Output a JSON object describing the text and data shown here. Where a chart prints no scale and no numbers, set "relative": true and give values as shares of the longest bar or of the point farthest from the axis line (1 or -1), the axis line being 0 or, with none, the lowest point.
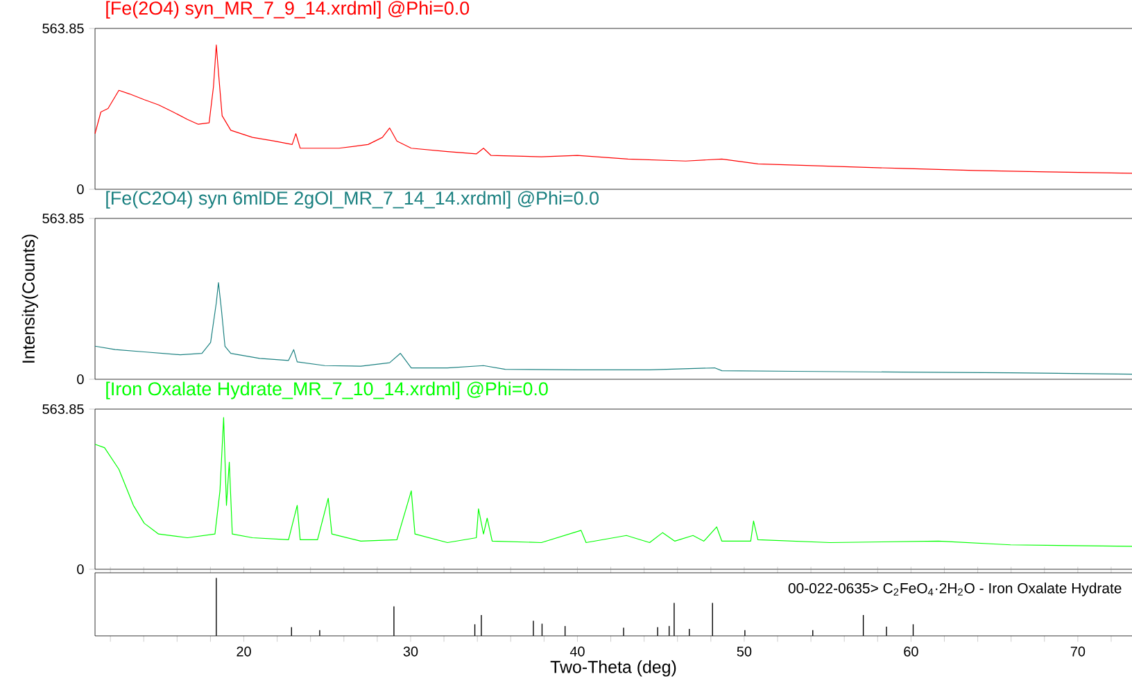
{
  "chart_data": [
    {
      "type": "line",
      "title": "[Fe(2O4) syn_MR_7_9_14.xrdml] @Phi=0.0",
      "xlim": [
        11.08,
        73.25
      ],
      "ylim": [
        0,
        563.85
      ],
      "yticks": [
        0,
        563.85
      ],
      "tick_labels": "y",
      "x": [
        11.08,
        11.43,
        11.86,
        12.51,
        13.16,
        14.03,
        14.89,
        15.76,
        16.62,
        17.27,
        17.92,
        18.18,
        18.35,
        18.48,
        18.7,
        19.22,
        20.52,
        21.82,
        22.9,
        23.12,
        23.38,
        23.98,
        25.71,
        27.45,
        28.31,
        28.74,
        29.18,
        30.04,
        32.21,
        33.94,
        34.37,
        34.81,
        37.84,
        40.0,
        43.03,
        46.49,
        48.66,
        50.82,
        55.15,
        59.48,
        63.81,
        68.14,
        73.25
      ],
      "series": [
        {
          "color": "#ff0000",
          "values": [
            195,
            271,
            283,
            347,
            334,
            314,
            296,
            271,
            245,
            228,
            233,
            359,
            506,
            410,
            258,
            207,
            182,
            169,
            157,
            195,
            144,
            144,
            144,
            157,
            182,
            215,
            169,
            144,
            132,
            124,
            144,
            119,
            114,
            119,
            106,
            99,
            106,
            89,
            81,
            73,
            66,
            61,
            56
          ]
        }
      ]
    },
    {
      "type": "line",
      "title": "[Fe(C2O4) syn 6mlDE 2gOl_MR_7_14_14.xrdml] @Phi=0.0",
      "ylabel": "Intensity(Counts)",
      "xlim": [
        11.08,
        73.25
      ],
      "ylim": [
        0,
        563.85
      ],
      "yticks": [
        0,
        563.85
      ],
      "tick_labels": "y",
      "x": [
        11.08,
        12.29,
        14.03,
        16.19,
        17.49,
        18.01,
        18.35,
        18.48,
        18.66,
        18.87,
        19.22,
        20.95,
        22.68,
        22.99,
        23.2,
        24.85,
        27.01,
        28.74,
        29.39,
        30.04,
        32.21,
        34.37,
        35.67,
        40.0,
        44.33,
        48.23,
        48.66,
        52.99,
        59.48,
        65.97,
        73.25
      ],
      "series": [
        {
          "color": "#1a8080",
          "values": [
            116,
            104,
            96,
            86,
            91,
            129,
            268,
            339,
            243,
            116,
            91,
            73,
            66,
            104,
            61,
            48,
            46,
            58,
            91,
            40,
            40,
            48,
            35,
            33,
            33,
            40,
            30,
            28,
            25,
            23,
            18
          ]
        }
      ]
    },
    {
      "type": "line",
      "title": "[Iron Oxalate Hydrate_MR_7_10_14.xrdml] @Phi=0.0",
      "xlim": [
        11.08,
        73.25
      ],
      "ylim": [
        0,
        563.85
      ],
      "yticks": [
        0,
        563.85
      ],
      "tick_labels": "y",
      "x": [
        11.08,
        11.65,
        12.51,
        13.38,
        14.03,
        14.89,
        16.62,
        18.27,
        18.57,
        18.79,
        18.96,
        19.13,
        19.31,
        20.52,
        22.68,
        23.2,
        23.38,
        24.42,
        25.06,
        25.28,
        27.01,
        29.18,
        30.04,
        30.26,
        32.21,
        33.94,
        34.07,
        34.37,
        34.59,
        34.89,
        37.84,
        40.22,
        40.52,
        42.94,
        44.33,
        45.11,
        45.84,
        46.93,
        47.58,
        48.35,
        48.66,
        50.39,
        50.56,
        50.82,
        55.15,
        61.65,
        65.97,
        73.25
      ],
      "series": [
        {
          "color": "#00ff00",
          "values": [
            440,
            428,
            352,
            225,
            162,
            124,
            111,
            124,
            276,
            534,
            225,
            377,
            124,
            111,
            104,
            225,
            104,
            104,
            250,
            124,
            99,
            104,
            276,
            124,
            94,
            111,
            213,
            124,
            180,
            99,
            94,
            137,
            94,
            119,
            94,
            129,
            99,
            119,
            99,
            149,
            99,
            99,
            170,
            104,
            94,
            99,
            86,
            81
          ]
        }
      ]
    },
    {
      "type": "bar",
      "relative": true,
      "color": "#000000",
      "xlabel": "Two-Theta (deg)",
      "xlim": [
        11.08,
        73.25
      ],
      "tick_labels": "x",
      "annotations": [
        "00-022-0635> C$_{2}$FeO$_{4}$·2H$_{2}$O - Iron Oxalate Hydrate"
      ],
      "xticks": [
        {
          "value": 12,
          "label": null
        },
        {
          "value": 14,
          "label": null
        },
        {
          "value": 16,
          "label": null
        },
        {
          "value": 18,
          "label": null
        },
        20,
        {
          "value": 22,
          "label": null
        },
        {
          "value": 24,
          "label": null
        },
        {
          "value": 26,
          "label": null
        },
        {
          "value": 28,
          "label": null
        },
        30,
        {
          "value": 32,
          "label": null
        },
        {
          "value": 34,
          "label": null
        },
        {
          "value": 36,
          "label": null
        },
        {
          "value": 38,
          "label": null
        },
        40,
        {
          "value": 42,
          "label": null
        },
        {
          "value": 44,
          "label": null
        },
        {
          "value": 46,
          "label": null
        },
        {
          "value": 48,
          "label": null
        },
        50,
        {
          "value": 52,
          "label": null
        },
        {
          "value": 54,
          "label": null
        },
        {
          "value": 56,
          "label": null
        },
        {
          "value": 58,
          "label": null
        },
        60,
        {
          "value": 62,
          "label": null
        },
        {
          "value": 64,
          "label": null
        },
        {
          "value": 66,
          "label": null
        },
        {
          "value": 68,
          "label": null
        },
        70,
        {
          "value": 72,
          "label": null
        }
      ],
      "x": [
        18.35,
        22.86,
        24.55,
        29.0,
        33.85,
        34.24,
        37.36,
        37.88,
        39.26,
        42.77,
        44.81,
        45.5,
        45.8,
        46.71,
        48.1,
        50.04,
        54.11,
        57.14,
        58.53,
        60.13
      ],
      "values": [
        1.0,
        0.15,
        0.1,
        0.51,
        0.2,
        0.36,
        0.26,
        0.21,
        0.17,
        0.14,
        0.15,
        0.17,
        0.57,
        0.12,
        0.57,
        0.1,
        0.1,
        0.36,
        0.16,
        0.2
      ]
    }
  ]
}
